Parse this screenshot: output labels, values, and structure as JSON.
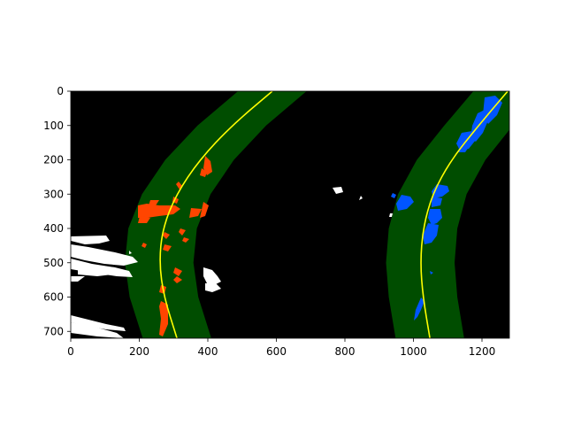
{
  "image": {
    "description_free": true,
    "source_width": 1280,
    "source_height": 720,
    "background_color": "#000000",
    "lane_window_color": "#004d00",
    "fit_line_color": "#ffff00",
    "left_lane_pixel_color": "#ff4500",
    "right_lane_pixel_color": "#0055ff",
    "other_pixel_color": "#ffffff"
  },
  "axes": {
    "x_ticks": [
      "0",
      "200",
      "400",
      "600",
      "800",
      "1000",
      "1200"
    ],
    "x_tick_values": [
      0,
      200,
      400,
      600,
      800,
      1000,
      1200
    ],
    "y_ticks": [
      "0",
      "100",
      "200",
      "300",
      "400",
      "500",
      "600",
      "700"
    ],
    "y_tick_values": [
      0,
      100,
      200,
      300,
      400,
      500,
      600,
      700
    ],
    "xlim": [
      0,
      1280
    ],
    "ylim": [
      720,
      0
    ]
  },
  "lanes": {
    "left": {
      "fit_x": [
        588,
        470,
        376,
        308,
        268,
        258,
        272,
        310
      ],
      "fit_y": [
        0,
        100,
        200,
        300,
        400,
        500,
        600,
        720
      ],
      "margin": 100
    },
    "right": {
      "fit_x": [
        1275,
        1190,
        1110,
        1055,
        1028,
        1020,
        1028,
        1048
      ],
      "fit_y": [
        0,
        100,
        200,
        300,
        400,
        500,
        600,
        720
      ],
      "margin": 100
    }
  }
}
